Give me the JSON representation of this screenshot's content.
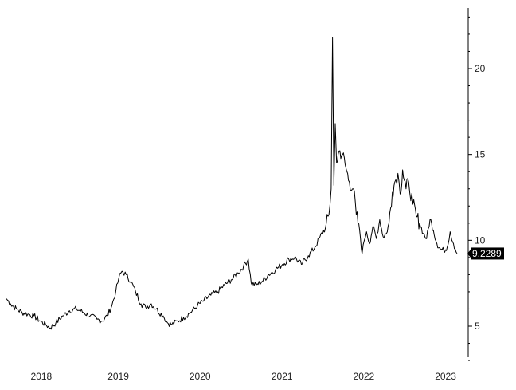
{
  "chart_data": {
    "type": "line",
    "title": "",
    "xlabel": "",
    "ylabel": "",
    "x_range": [
      "2017-10-01",
      "2023-04-10"
    ],
    "ylim": [
      2.5,
      23.5
    ],
    "y_axis_position": "right",
    "grid": false,
    "legend": "none",
    "line_color": "#000000",
    "x_ticks": [
      {
        "label": "2018",
        "x": "2018-01-01"
      },
      {
        "label": "2019",
        "x": "2019-01-01"
      },
      {
        "label": "2020",
        "x": "2020-01-01"
      },
      {
        "label": "2021",
        "x": "2021-01-01"
      },
      {
        "label": "2022",
        "x": "2022-01-01"
      },
      {
        "label": "2023",
        "x": "2023-01-01"
      }
    ],
    "y_ticks": [
      5,
      10,
      15,
      20
    ],
    "last_value": {
      "label": "9.2289",
      "value": 9.2289,
      "x": "2023-04-05"
    },
    "series": [
      {
        "points": [
          [
            "2017-10-01",
            6.6
          ],
          [
            "2017-10-20",
            6.3
          ],
          [
            "2017-11-15",
            6.0
          ],
          [
            "2017-12-10",
            5.8
          ],
          [
            "2018-01-05",
            5.7
          ],
          [
            "2018-02-01",
            5.6
          ],
          [
            "2018-03-01",
            5.3
          ],
          [
            "2018-03-25",
            5.1
          ],
          [
            "2018-04-15",
            4.9
          ],
          [
            "2018-05-10",
            5.2
          ],
          [
            "2018-06-10",
            5.6
          ],
          [
            "2018-07-10",
            5.9
          ],
          [
            "2018-08-10",
            6.0
          ],
          [
            "2018-09-10",
            5.8
          ],
          [
            "2018-10-10",
            5.6
          ],
          [
            "2018-11-10",
            5.4
          ],
          [
            "2018-12-01",
            5.3
          ],
          [
            "2018-12-25",
            5.6
          ],
          [
            "2019-01-15",
            6.2
          ],
          [
            "2019-02-01",
            7.0
          ],
          [
            "2019-02-15",
            7.8
          ],
          [
            "2019-03-01",
            8.2
          ],
          [
            "2019-03-20",
            8.0
          ],
          [
            "2019-04-10",
            7.6
          ],
          [
            "2019-05-01",
            7.0
          ],
          [
            "2019-05-25",
            6.3
          ],
          [
            "2019-06-15",
            6.1
          ],
          [
            "2019-07-10",
            6.3
          ],
          [
            "2019-08-01",
            6.0
          ],
          [
            "2019-09-01",
            5.6
          ],
          [
            "2019-09-20",
            5.2
          ],
          [
            "2019-10-10",
            5.1
          ],
          [
            "2019-11-05",
            5.3
          ],
          [
            "2019-12-01",
            5.5
          ],
          [
            "2020-01-01",
            5.8
          ],
          [
            "2020-02-01",
            6.2
          ],
          [
            "2020-03-01",
            6.5
          ],
          [
            "2020-04-01",
            6.8
          ],
          [
            "2020-05-01",
            7.0
          ],
          [
            "2020-06-01",
            7.4
          ],
          [
            "2020-07-01",
            7.7
          ],
          [
            "2020-08-01",
            8.1
          ],
          [
            "2020-08-25",
            8.5
          ],
          [
            "2020-09-15",
            8.9
          ],
          [
            "2020-09-28",
            7.5
          ],
          [
            "2020-10-20",
            7.4
          ],
          [
            "2020-11-15",
            7.6
          ],
          [
            "2020-12-15",
            8.0
          ],
          [
            "2021-01-15",
            8.3
          ],
          [
            "2021-02-15",
            8.6
          ],
          [
            "2021-03-15",
            8.9
          ],
          [
            "2021-04-10",
            9.0
          ],
          [
            "2021-05-10",
            8.6
          ],
          [
            "2021-06-10",
            9.1
          ],
          [
            "2021-07-10",
            9.6
          ],
          [
            "2021-08-01",
            10.2
          ],
          [
            "2021-08-25",
            10.7
          ],
          [
            "2021-09-10",
            11.5
          ],
          [
            "2021-09-20",
            13.0
          ],
          [
            "2021-09-26",
            21.8
          ],
          [
            "2021-10-02",
            13.2
          ],
          [
            "2021-10-08",
            16.8
          ],
          [
            "2021-10-14",
            14.5
          ],
          [
            "2021-10-25",
            15.2
          ],
          [
            "2021-11-10",
            15.0
          ],
          [
            "2021-11-25",
            14.2
          ],
          [
            "2021-12-10",
            13.4
          ],
          [
            "2021-12-28",
            13.0
          ],
          [
            "2022-01-10",
            11.5
          ],
          [
            "2022-01-25",
            10.6
          ],
          [
            "2022-02-05",
            9.2
          ],
          [
            "2022-02-15",
            10.0
          ],
          [
            "2022-02-25",
            10.5
          ],
          [
            "2022-03-10",
            9.8
          ],
          [
            "2022-03-25",
            10.8
          ],
          [
            "2022-04-10",
            10.1
          ],
          [
            "2022-04-25",
            11.2
          ],
          [
            "2022-05-10",
            10.2
          ],
          [
            "2022-05-25",
            10.4
          ],
          [
            "2022-06-05",
            11.0
          ],
          [
            "2022-06-20",
            12.8
          ],
          [
            "2022-07-01",
            13.4
          ],
          [
            "2022-07-15",
            13.9
          ],
          [
            "2022-07-25",
            12.7
          ],
          [
            "2022-08-05",
            14.1
          ],
          [
            "2022-08-20",
            13.0
          ],
          [
            "2022-09-01",
            13.4
          ],
          [
            "2022-09-20",
            12.1
          ],
          [
            "2022-10-05",
            11.4
          ],
          [
            "2022-10-20",
            11.0
          ],
          [
            "2022-11-05",
            10.4
          ],
          [
            "2022-11-20",
            10.1
          ],
          [
            "2022-12-05",
            11.2
          ],
          [
            "2022-12-20",
            10.6
          ],
          [
            "2023-01-05",
            9.8
          ],
          [
            "2023-01-20",
            9.5
          ],
          [
            "2023-02-05",
            9.4
          ],
          [
            "2023-02-20",
            9.6
          ],
          [
            "2023-03-05",
            10.5
          ],
          [
            "2023-03-20",
            9.8
          ],
          [
            "2023-04-05",
            9.2289
          ]
        ]
      }
    ]
  }
}
